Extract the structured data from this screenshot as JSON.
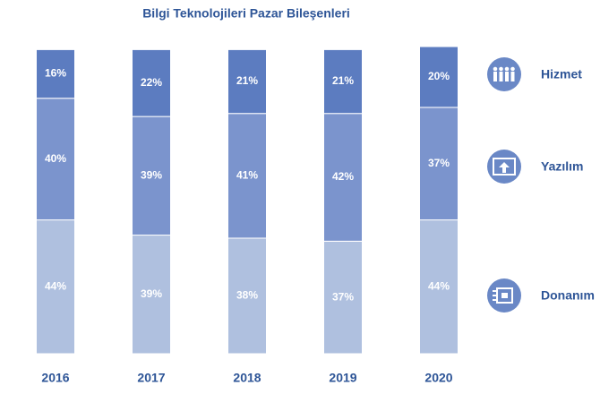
{
  "chart_data": {
    "type": "stacked_bar",
    "title": "Bilgi Teknolojileri Pazar Bileşenleri",
    "categories": [
      "2016",
      "2017",
      "2018",
      "2019",
      "2020"
    ],
    "series": [
      {
        "name": "Donanım",
        "color": "#afc0df",
        "values": [
          44,
          39,
          38,
          37,
          44
        ],
        "value_labels": [
          "44%",
          "39%",
          "38%",
          "37%",
          "44%"
        ]
      },
      {
        "name": "Yazılım",
        "color": "#7b94cd",
        "values": [
          40,
          39,
          41,
          42,
          37
        ],
        "value_labels": [
          "40%",
          "39%",
          "41%",
          "42%",
          "37%"
        ]
      },
      {
        "name": "Hizmet",
        "color": "#5c7cc0",
        "values": [
          16,
          22,
          21,
          21,
          20
        ],
        "value_labels": [
          "16%",
          "22%",
          "21%",
          "21%",
          "20%"
        ]
      }
    ]
  }
}
